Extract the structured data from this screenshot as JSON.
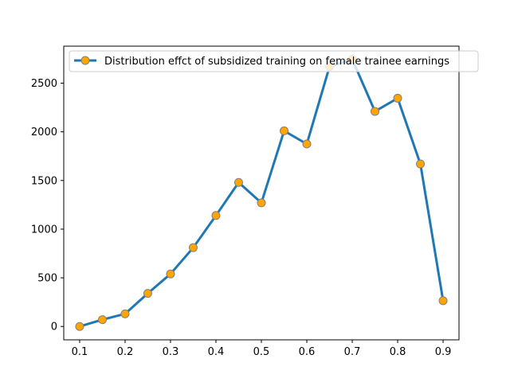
{
  "chart_data": {
    "type": "line",
    "title": "",
    "xlabel": "",
    "ylabel": "",
    "x": [
      0.1,
      0.15,
      0.2,
      0.25,
      0.3,
      0.35,
      0.4,
      0.45,
      0.5,
      0.55,
      0.6,
      0.65,
      0.7,
      0.75,
      0.8,
      0.85,
      0.9
    ],
    "series": [
      {
        "name": "Distribution effct of subsidized training on female trainee earnings",
        "values": [
          0,
          70,
          130,
          340,
          540,
          810,
          1140,
          1480,
          1270,
          2010,
          1875,
          2670,
          2745,
          2210,
          2345,
          1670,
          265
        ],
        "line_color": "#1f77b4",
        "marker_face_color": "#ffa500",
        "marker_edge_color": "#808080"
      }
    ],
    "xlim": [
      0.065,
      0.935
    ],
    "ylim": [
      -137,
      2880
    ],
    "xticks": [
      "0.1",
      "0.2",
      "0.3",
      "0.4",
      "0.5",
      "0.6",
      "0.7",
      "0.8",
      "0.9"
    ],
    "yticks": [
      "0",
      "500",
      "1000",
      "1500",
      "2000",
      "2500"
    ],
    "grid": false,
    "legend_position": "top-right"
  }
}
